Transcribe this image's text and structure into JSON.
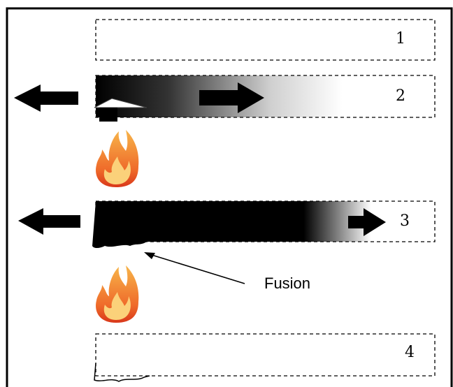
{
  "figure": {
    "panels": [
      {
        "label": "1"
      },
      {
        "label": "2"
      },
      {
        "label": "3"
      },
      {
        "label": "4"
      }
    ],
    "annotation": {
      "text": "Fusion"
    },
    "icons": [
      "left-arrow-icon",
      "right-arrow-icon",
      "fire-icon",
      "heat-tool-icon"
    ],
    "colors": {
      "ink": "#000000",
      "flame_outer": "#e8491d",
      "flame_inner": "#f7b54a"
    }
  }
}
